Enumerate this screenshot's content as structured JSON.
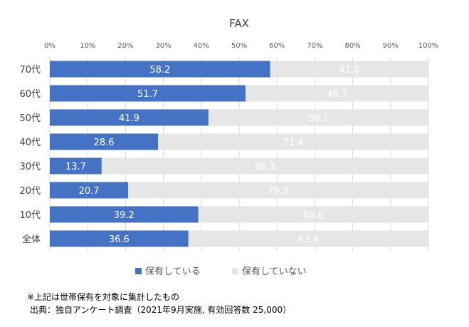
{
  "chart_data": {
    "type": "bar",
    "orientation": "horizontal",
    "stacked": true,
    "title": "FAX",
    "categories": [
      "70代",
      "60代",
      "50代",
      "40代",
      "30代",
      "20代",
      "10代",
      "全体"
    ],
    "series": [
      {
        "name": "保有している",
        "values": [
          58.2,
          51.7,
          41.9,
          28.6,
          13.7,
          20.7,
          39.2,
          36.6
        ],
        "color": "#4472C4"
      },
      {
        "name": "保有していない",
        "values": [
          41.8,
          48.3,
          58.1,
          71.4,
          86.3,
          79.3,
          60.8,
          63.4
        ],
        "color": "#E7E6E6"
      }
    ],
    "xlim": [
      0,
      100
    ],
    "xticks": [
      "0%",
      "10%",
      "20%",
      "30%",
      "40%",
      "50%",
      "60%",
      "70%",
      "80%",
      "90%",
      "100%"
    ],
    "grid": true,
    "legend_position": "bottom"
  },
  "notes": {
    "line1": "※上記は世帯保有を対象に集計したもの",
    "line2": "出典：独自アンケート調査（2021年9月実施, 有効回答数 25,000）"
  }
}
